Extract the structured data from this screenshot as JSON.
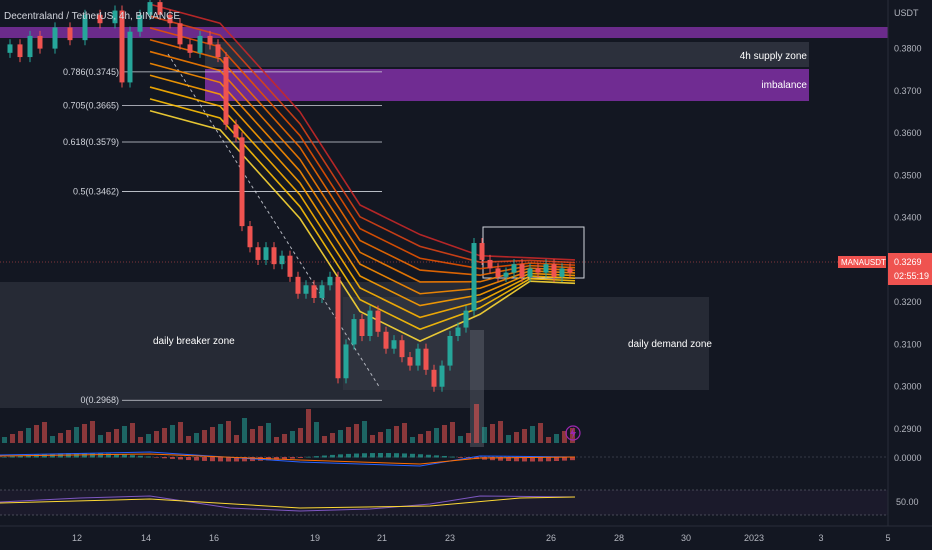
{
  "header": {
    "symbol_line": "Decentraland / TetherUS, 4h, BINANCE",
    "currency": "USDT"
  },
  "price_tag": {
    "symbol": "MANAUSDT",
    "price": "0.3269",
    "countdown": "02:55:19",
    "color": "#ef5350"
  },
  "colors": {
    "background": "#131722",
    "up": "#26a69a",
    "down": "#ef5350",
    "zone": "#363a45",
    "purple": "#7b2f9e"
  },
  "zones": [
    {
      "label": "4h supply zone"
    },
    {
      "label": "imbalance"
    },
    {
      "label": "daily breaker zone"
    },
    {
      "label": "daily demand zone"
    }
  ],
  "chart_data": {
    "type": "candlestick",
    "y_axis": {
      "ticks": [
        "0.3800",
        "0.3700",
        "0.3600",
        "0.3500",
        "0.3400",
        "0.3300",
        "0.3200",
        "0.3100",
        "0.3000",
        "0.2900"
      ],
      "range": [
        0.2855,
        0.3915
      ],
      "position": "right"
    },
    "x_axis": {
      "ticks": [
        "12",
        "14",
        "16",
        "19",
        "21",
        "23",
        "26",
        "28",
        "30",
        "2023",
        "3",
        "5"
      ]
    },
    "fibonacci": [
      {
        "label": "0.786(0.3745)",
        "value": 0.3745
      },
      {
        "label": "0.705(0.3665)",
        "value": 0.3665
      },
      {
        "label": "0.618(0.3579)",
        "value": 0.3579
      },
      {
        "label": "0.5(0.3462)",
        "value": 0.3462
      },
      {
        "label": "0(0.2968)",
        "value": 0.2968
      }
    ],
    "macd_pane": {
      "ticks": [
        "0.0000"
      ]
    },
    "rsi_pane": {
      "ticks": [
        "50.00"
      ]
    },
    "grid": false
  }
}
